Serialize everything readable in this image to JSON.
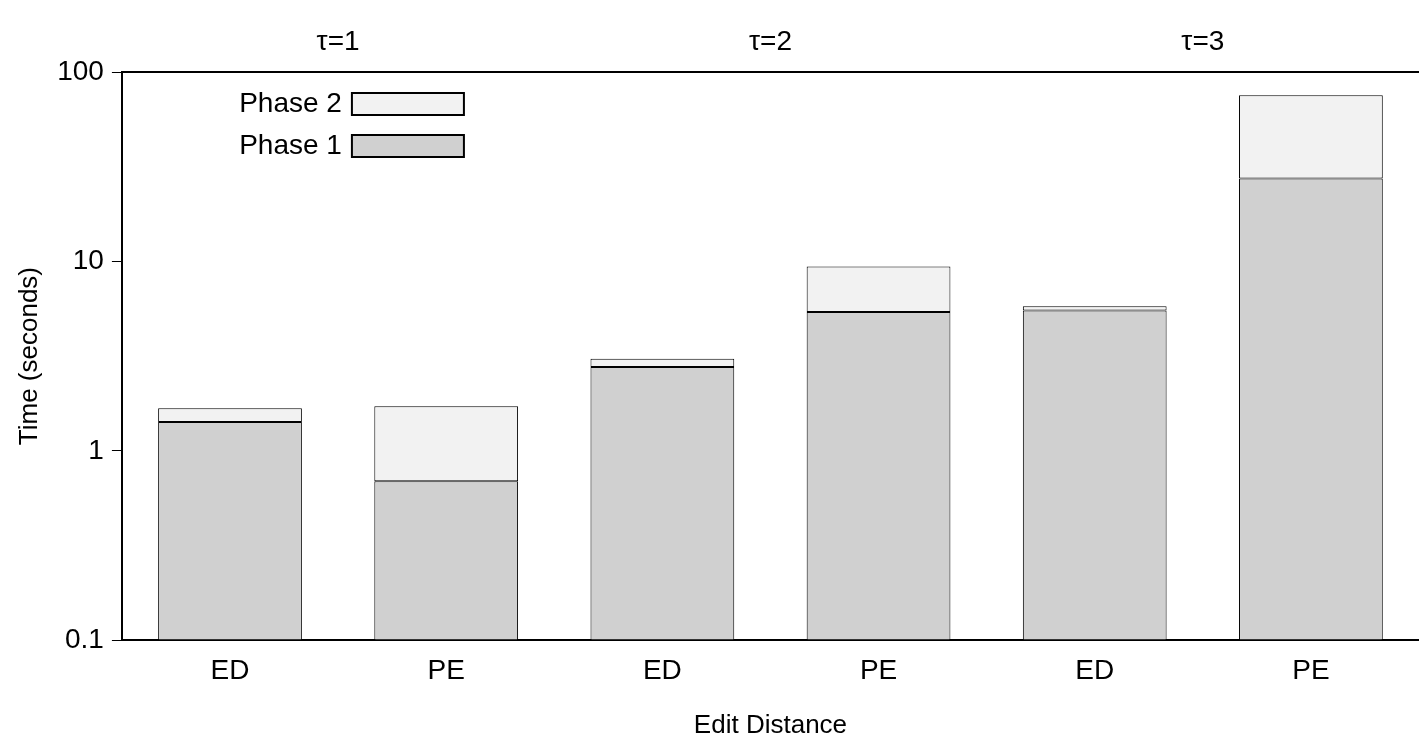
{
  "chart_data": {
    "type": "bar",
    "xlabel": "Edit Distance",
    "ylabel": "Time (seconds)",
    "categories": [
      "ED",
      "PE",
      "ED",
      "PE",
      "ED",
      "PE"
    ],
    "series": [
      {
        "name": "Phase 1",
        "color": "#d0d0d0",
        "values": [
          1.42,
          0.69,
          2.77,
          5.4,
          5.5,
          27.4
        ]
      },
      {
        "name": "Phase 2",
        "color": "#f2f2f2",
        "values": [
          0.26,
          1.03,
          0.29,
          4.0,
          0.3,
          48
        ]
      }
    ],
    "stacked": true,
    "log": "y",
    "ylim": [
      0.1,
      100
    ],
    "yticks": [
      0.1,
      1,
      10,
      100
    ],
    "annotations": [
      "τ=1",
      "τ=2",
      "τ=3"
    ],
    "legend": "top left",
    "grid": false
  }
}
